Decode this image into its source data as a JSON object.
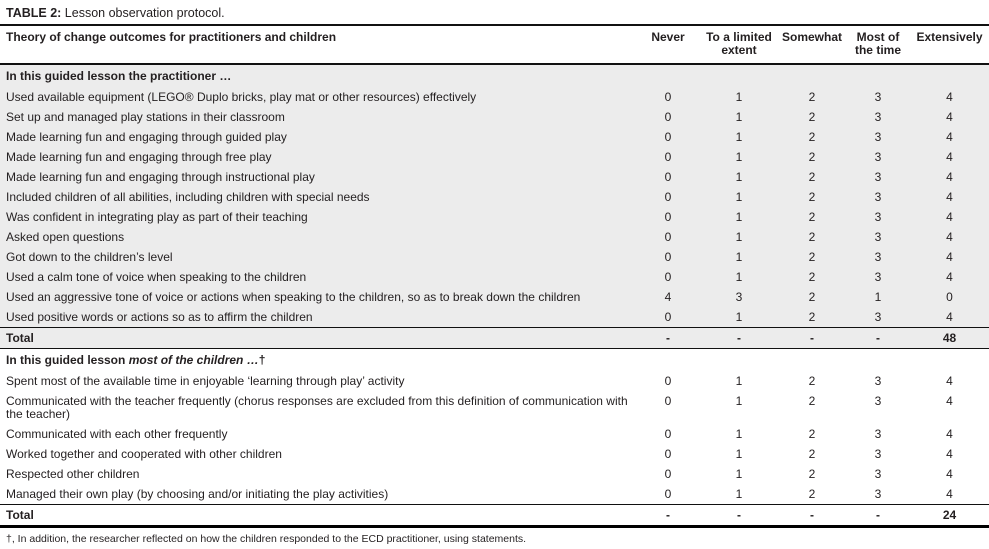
{
  "table": {
    "title_label": "TABLE 2:",
    "title_text": " Lesson observation protocol.",
    "header": {
      "label": "Theory of change outcomes for practitioners and children",
      "columns": [
        "Never",
        "To a limited extent",
        "Somewhat",
        "Most of the time",
        "Extensively"
      ]
    },
    "sections": [
      {
        "shaded": true,
        "header": {
          "prefix": "In this guided lesson the practitioner …",
          "italic": "",
          "dagger": ""
        },
        "rows": [
          {
            "label": "Used available equipment (LEGO® Duplo bricks, play mat or other resources) effectively",
            "values": [
              "0",
              "1",
              "2",
              "3",
              "4"
            ]
          },
          {
            "label": "Set up and managed play stations in their classroom",
            "values": [
              "0",
              "1",
              "2",
              "3",
              "4"
            ]
          },
          {
            "label": "Made learning fun and engaging through guided play",
            "values": [
              "0",
              "1",
              "2",
              "3",
              "4"
            ]
          },
          {
            "label": "Made learning fun and engaging through free play",
            "values": [
              "0",
              "1",
              "2",
              "3",
              "4"
            ]
          },
          {
            "label": "Made learning fun and engaging through instructional play",
            "values": [
              "0",
              "1",
              "2",
              "3",
              "4"
            ]
          },
          {
            "label": "Included children of all abilities, including children with special needs",
            "values": [
              "0",
              "1",
              "2",
              "3",
              "4"
            ]
          },
          {
            "label": "Was confident in integrating play as part of their teaching",
            "values": [
              "0",
              "1",
              "2",
              "3",
              "4"
            ]
          },
          {
            "label": "Asked open questions",
            "values": [
              "0",
              "1",
              "2",
              "3",
              "4"
            ]
          },
          {
            "label": "Got down to the children’s level",
            "values": [
              "0",
              "1",
              "2",
              "3",
              "4"
            ]
          },
          {
            "label": "Used a calm tone of voice when speaking to the children",
            "values": [
              "0",
              "1",
              "2",
              "3",
              "4"
            ]
          },
          {
            "label": "Used an aggressive tone of voice or actions when speaking to the children, so as to break down the children",
            "values": [
              "4",
              "3",
              "2",
              "1",
              "0"
            ]
          },
          {
            "label": "Used positive words or actions so as to affirm the children",
            "values": [
              "0",
              "1",
              "2",
              "3",
              "4"
            ]
          }
        ],
        "total": {
          "label": "Total",
          "values": [
            "-",
            "-",
            "-",
            "-",
            "48"
          ]
        }
      },
      {
        "shaded": false,
        "header": {
          "prefix": "In this guided lesson ",
          "italic": "most of the children …",
          "dagger": "†"
        },
        "rows": [
          {
            "label": "Spent most of the available time in enjoyable ‘learning through play’ activity",
            "values": [
              "0",
              "1",
              "2",
              "3",
              "4"
            ]
          },
          {
            "label": "Communicated with the teacher frequently (chorus responses are excluded from this definition of communication with the teacher)",
            "values": [
              "0",
              "1",
              "2",
              "3",
              "4"
            ]
          },
          {
            "label": "Communicated with each other frequently",
            "values": [
              "0",
              "1",
              "2",
              "3",
              "4"
            ]
          },
          {
            "label": "Worked together and cooperated with other children",
            "values": [
              "0",
              "1",
              "2",
              "3",
              "4"
            ]
          },
          {
            "label": "Respected other children",
            "values": [
              "0",
              "1",
              "2",
              "3",
              "4"
            ]
          },
          {
            "label": "Managed their own play (by choosing and/or initiating the play activities)",
            "values": [
              "0",
              "1",
              "2",
              "3",
              "4"
            ]
          }
        ],
        "total": {
          "label": "Total",
          "values": [
            "-",
            "-",
            "-",
            "-",
            "24"
          ]
        }
      }
    ],
    "footnote": "†, In addition, the researcher reflected on how the children responded to the ECD practitioner, using statements."
  }
}
